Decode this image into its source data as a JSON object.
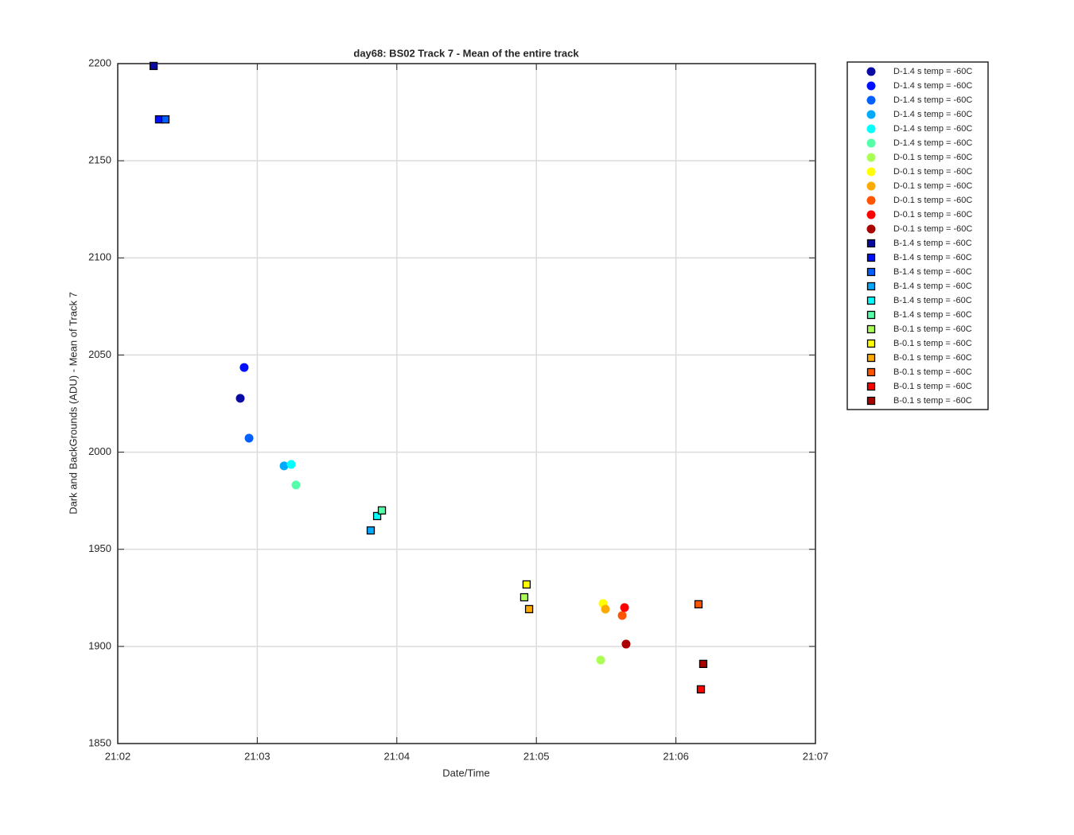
{
  "chart_data": {
    "type": "scatter",
    "title": "day68: BS02  Track 7 - Mean of the entire track",
    "xlabel": "Date/Time",
    "ylabel": "Dark and BackGrounds (ADU) - Mean of Track 7",
    "xlim": [
      1262,
      1267
    ],
    "xticks": [
      {
        "value": 1262,
        "label": "21:02"
      },
      {
        "value": 1263,
        "label": "21:03"
      },
      {
        "value": 1264,
        "label": "21:04"
      },
      {
        "value": 1265,
        "label": "21:05"
      },
      {
        "value": 1266,
        "label": "21:06"
      },
      {
        "value": 1267,
        "label": "21:07"
      }
    ],
    "ylim": [
      1850,
      2200
    ],
    "yticks": [
      1850,
      1900,
      1950,
      2000,
      2050,
      2100,
      2150,
      2200
    ],
    "grid": true,
    "legend": "outside-right",
    "series": [
      {
        "name": "D-1.4 s temp = -60C",
        "marker": "circle",
        "color": "#0a0aa5",
        "x": [
          1262.878
        ],
        "values": [
          2027.7
        ]
      },
      {
        "name": "D-1.4 s temp = -60C",
        "marker": "circle",
        "color": "#0010ff",
        "x": [
          1262.906
        ],
        "values": [
          2043.6
        ]
      },
      {
        "name": "D-1.4 s temp = -60C",
        "marker": "circle",
        "color": "#0060ff",
        "x": [
          1262.941
        ],
        "values": [
          2007.2
        ]
      },
      {
        "name": "D-1.4 s temp = -60C",
        "marker": "circle",
        "color": "#00aaff",
        "x": [
          1263.192
        ],
        "values": [
          1992.9
        ]
      },
      {
        "name": "D-1.4 s temp = -60C",
        "marker": "circle",
        "color": "#00ffff",
        "x": [
          1263.243
        ],
        "values": [
          1993.7
        ]
      },
      {
        "name": "D-1.4 s temp = -60C",
        "marker": "circle",
        "color": "#55ffaa",
        "x": [
          1263.277
        ],
        "values": [
          1983.1
        ]
      },
      {
        "name": "D-0.1 s temp = -60C",
        "marker": "circle",
        "color": "#aaff55",
        "x": [
          1265.461
        ],
        "values": [
          1893
        ]
      },
      {
        "name": "D-0.1 s temp = -60C",
        "marker": "circle",
        "color": "#ffff00",
        "x": [
          1265.478
        ],
        "values": [
          1922.1
        ]
      },
      {
        "name": "D-0.1 s temp = -60C",
        "marker": "circle",
        "color": "#ffaa00",
        "x": [
          1265.495
        ],
        "values": [
          1919.2
        ]
      },
      {
        "name": "D-0.1 s temp = -60C",
        "marker": "circle",
        "color": "#ff5500",
        "x": [
          1265.615
        ],
        "values": [
          1915.9
        ]
      },
      {
        "name": "D-0.1 s temp = -60C",
        "marker": "circle",
        "color": "#ff0000",
        "x": [
          1265.632
        ],
        "values": [
          1920
        ]
      },
      {
        "name": "D-0.1 s temp = -60C",
        "marker": "circle",
        "color": "#aa0000",
        "x": [
          1265.643
        ],
        "values": [
          1901.2
        ]
      },
      {
        "name": "B-1.4 s temp = -60C",
        "marker": "square",
        "color": "#0a0aa5",
        "x": [
          1262.257
        ],
        "values": [
          2198.8
        ]
      },
      {
        "name": "B-1.4 s temp = -60C",
        "marker": "square",
        "color": "#0010ff",
        "x": [
          1262.296
        ],
        "values": [
          2171.3
        ]
      },
      {
        "name": "B-1.4 s temp = -60C",
        "marker": "square",
        "color": "#0060ff",
        "x": [
          1262.342
        ],
        "values": [
          2171.3
        ]
      },
      {
        "name": "B-1.4 s temp = -60C",
        "marker": "square",
        "color": "#00aaff",
        "x": [
          1263.813
        ],
        "values": [
          1959.7
        ]
      },
      {
        "name": "B-1.4 s temp = -60C",
        "marker": "square",
        "color": "#00ffff",
        "x": [
          1263.859
        ],
        "values": [
          1967.1
        ]
      },
      {
        "name": "B-1.4 s temp = -60C",
        "marker": "square",
        "color": "#55ffaa",
        "x": [
          1263.893
        ],
        "values": [
          1970
        ]
      },
      {
        "name": "B-0.1 s temp = -60C",
        "marker": "square",
        "color": "#aaff55",
        "x": [
          1264.913
        ],
        "values": [
          1925.3
        ]
      },
      {
        "name": "B-0.1 s temp = -60C",
        "marker": "square",
        "color": "#ffff00",
        "x": [
          1264.93
        ],
        "values": [
          1931.9
        ]
      },
      {
        "name": "B-0.1 s temp = -60C",
        "marker": "square",
        "color": "#ffaa00",
        "x": [
          1264.948
        ],
        "values": [
          1919.2
        ]
      },
      {
        "name": "B-0.1 s temp = -60C",
        "marker": "square",
        "color": "#ff5500",
        "x": [
          1266.162
        ],
        "values": [
          1921.7
        ]
      },
      {
        "name": "B-0.1 s temp = -60C",
        "marker": "square",
        "color": "#ff0000",
        "x": [
          1266.179
        ],
        "values": [
          1877.9
        ]
      },
      {
        "name": "B-0.1 s temp = -60C",
        "marker": "square",
        "color": "#aa0000",
        "x": [
          1266.196
        ],
        "values": [
          1891
        ]
      }
    ]
  }
}
